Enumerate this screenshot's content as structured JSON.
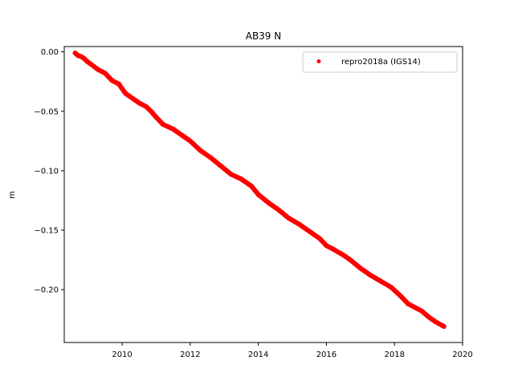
{
  "chart_data": {
    "type": "scatter",
    "title": "AB39 N",
    "xlabel": "",
    "ylabel": "m",
    "xlim": [
      2008.3,
      2020.0
    ],
    "ylim": [
      -0.2445,
      0.0045
    ],
    "xticks": [
      2010,
      2012,
      2014,
      2016,
      2018,
      2020
    ],
    "yticks": [
      0.0,
      -0.05,
      -0.1,
      -0.15,
      -0.2
    ],
    "xtick_labels": [
      "2010",
      "2012",
      "2014",
      "2016",
      "2018",
      "2020"
    ],
    "ytick_labels": [
      "0.00",
      "−0.05",
      "−0.10",
      "−0.15",
      "−0.20"
    ],
    "grid": false,
    "legend_position": "top-right",
    "series": [
      {
        "name": "repro2018a (IGS14)",
        "color": "#ff0000",
        "marker": "circle",
        "x": [
          2008.62,
          2008.7,
          2008.8,
          2008.9,
          2008.97,
          2009.3,
          2009.5,
          2009.7,
          2009.9,
          2010.1,
          2010.3,
          2010.5,
          2010.7,
          2010.85,
          2011.0,
          2011.2,
          2011.5,
          2011.8,
          2012.0,
          2012.3,
          2012.6,
          2012.9,
          2013.2,
          2013.5,
          2013.8,
          2014.0,
          2014.3,
          2014.6,
          2014.9,
          2015.2,
          2015.5,
          2015.8,
          2016.0,
          2016.2,
          2016.5,
          2016.7,
          2017.0,
          2017.3,
          2017.6,
          2017.9,
          2018.2,
          2018.4,
          2018.6,
          2018.8,
          2019.0,
          2019.2,
          2019.45
        ],
        "y": [
          -0.001,
          -0.003,
          -0.004,
          -0.006,
          -0.008,
          -0.015,
          -0.018,
          -0.024,
          -0.027,
          -0.035,
          -0.039,
          -0.043,
          -0.046,
          -0.05,
          -0.055,
          -0.061,
          -0.065,
          -0.071,
          -0.075,
          -0.083,
          -0.089,
          -0.096,
          -0.103,
          -0.107,
          -0.113,
          -0.12,
          -0.127,
          -0.133,
          -0.14,
          -0.145,
          -0.151,
          -0.157,
          -0.163,
          -0.166,
          -0.171,
          -0.175,
          -0.182,
          -0.188,
          -0.193,
          -0.198,
          -0.206,
          -0.212,
          -0.215,
          -0.218,
          -0.223,
          -0.227,
          -0.231
        ]
      }
    ]
  }
}
